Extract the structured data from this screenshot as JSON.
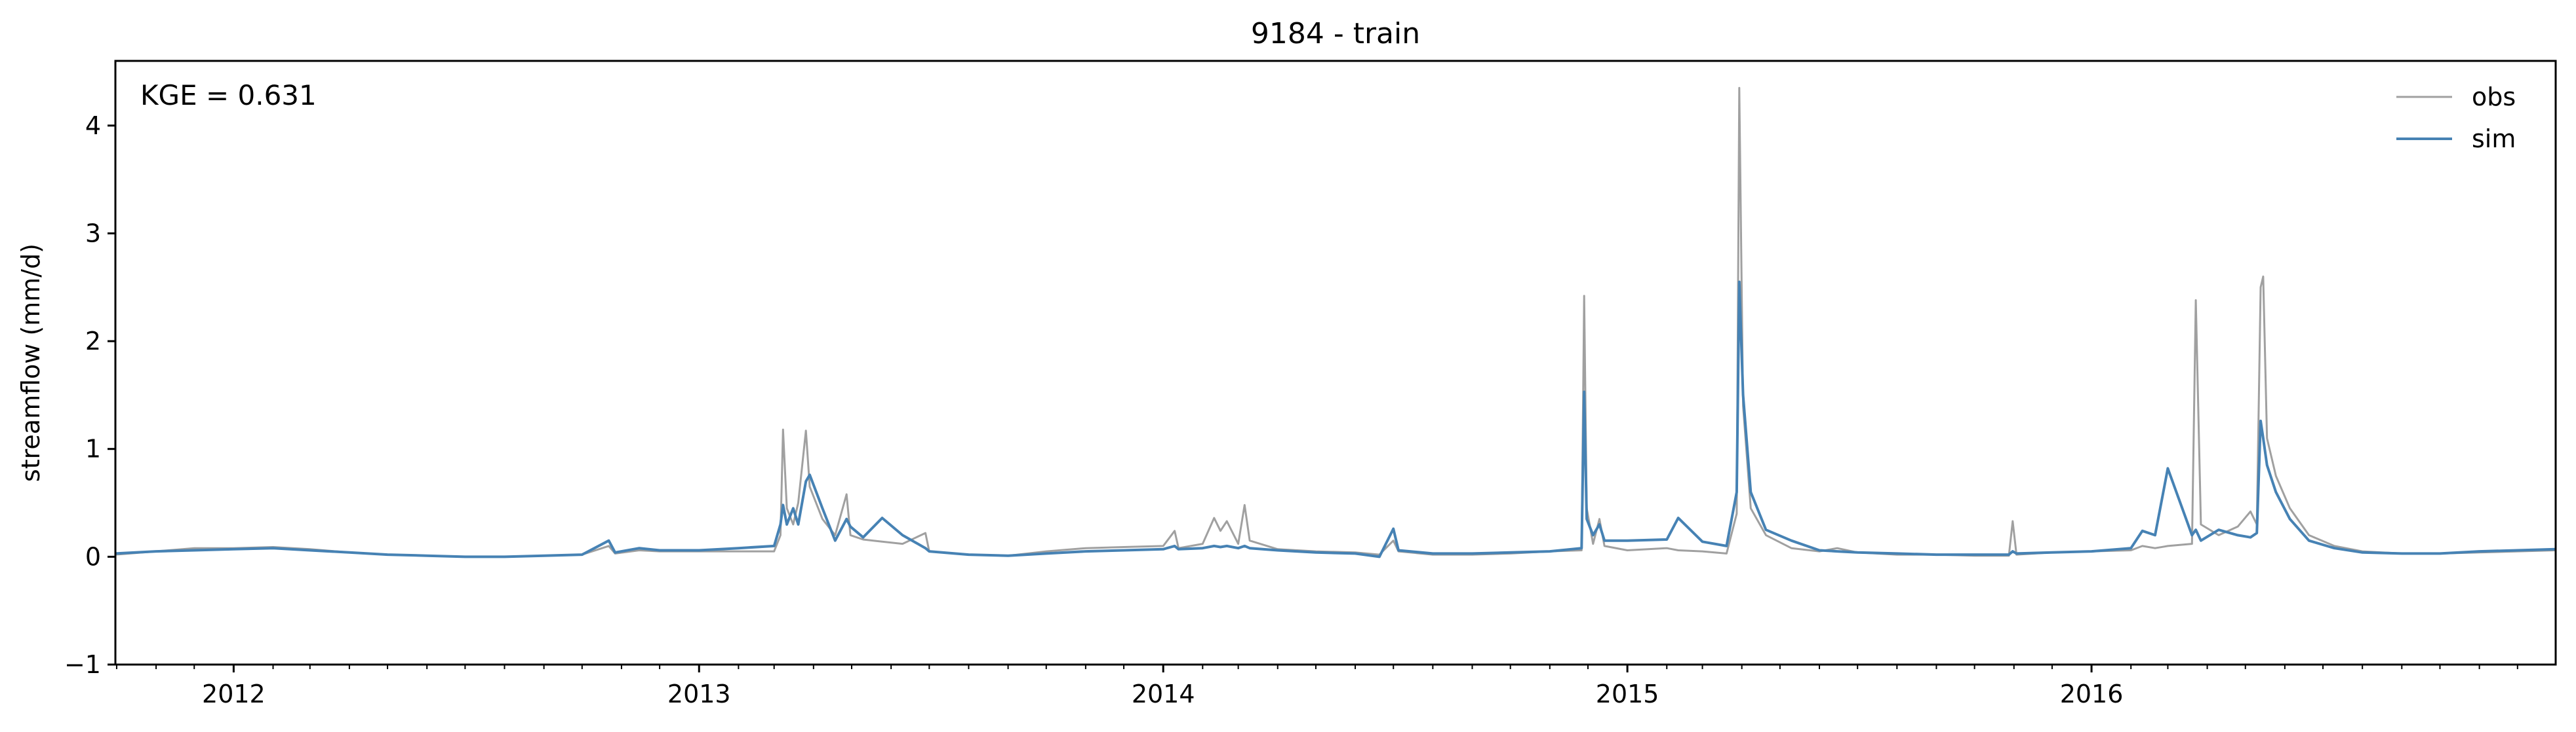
{
  "chart_data": {
    "type": "line",
    "title": "9184 - train",
    "xlabel": "",
    "ylabel": "streamflow (mm/d)",
    "annotation": "KGE = 0.631",
    "xlim": [
      "2011-09-30",
      "2016-12-31"
    ],
    "ylim": [
      -1,
      4.6
    ],
    "yticks": [
      -1,
      0,
      1,
      2,
      3,
      4
    ],
    "xticks": [
      {
        "date": "2012-01-01",
        "label": "2012"
      },
      {
        "date": "2013-01-01",
        "label": "2013"
      },
      {
        "date": "2014-01-01",
        "label": "2014"
      },
      {
        "date": "2015-01-01",
        "label": "2015"
      },
      {
        "date": "2016-01-01",
        "label": "2016"
      }
    ],
    "legend": {
      "position": "top-right"
    },
    "grid": false,
    "series": [
      {
        "name": "obs",
        "color": "#a0a0a0",
        "points": [
          [
            "2011-09-30",
            0.02
          ],
          [
            "2011-11-01",
            0.05
          ],
          [
            "2011-12-01",
            0.08
          ],
          [
            "2012-01-01",
            0.08
          ],
          [
            "2012-02-01",
            0.09
          ],
          [
            "2012-03-01",
            0.07
          ],
          [
            "2012-04-01",
            0.04
          ],
          [
            "2012-05-01",
            0.02
          ],
          [
            "2012-06-01",
            0.01
          ],
          [
            "2012-07-01",
            0.0
          ],
          [
            "2012-08-01",
            0.0
          ],
          [
            "2012-09-01",
            0.01
          ],
          [
            "2012-10-01",
            0.02
          ],
          [
            "2012-10-22",
            0.1
          ],
          [
            "2012-10-27",
            0.03
          ],
          [
            "2012-11-15",
            0.06
          ],
          [
            "2012-12-01",
            0.05
          ],
          [
            "2013-01-01",
            0.05
          ],
          [
            "2013-02-01",
            0.05
          ],
          [
            "2013-03-01",
            0.05
          ],
          [
            "2013-03-06",
            0.2
          ],
          [
            "2013-03-08",
            1.18
          ],
          [
            "2013-03-11",
            0.45
          ],
          [
            "2013-03-16",
            0.3
          ],
          [
            "2013-03-20",
            0.5
          ],
          [
            "2013-03-26",
            1.17
          ],
          [
            "2013-03-29",
            0.65
          ],
          [
            "2013-04-08",
            0.35
          ],
          [
            "2013-04-18",
            0.2
          ],
          [
            "2013-04-27",
            0.58
          ],
          [
            "2013-04-30",
            0.2
          ],
          [
            "2013-05-10",
            0.16
          ],
          [
            "2013-05-25",
            0.14
          ],
          [
            "2013-06-10",
            0.12
          ],
          [
            "2013-06-28",
            0.22
          ],
          [
            "2013-07-01",
            0.05
          ],
          [
            "2013-08-01",
            0.02
          ],
          [
            "2013-09-01",
            0.01
          ],
          [
            "2013-10-01",
            0.05
          ],
          [
            "2013-11-01",
            0.08
          ],
          [
            "2013-12-01",
            0.09
          ],
          [
            "2014-01-01",
            0.1
          ],
          [
            "2014-01-10",
            0.24
          ],
          [
            "2014-01-13",
            0.08
          ],
          [
            "2014-02-01",
            0.12
          ],
          [
            "2014-02-10",
            0.36
          ],
          [
            "2014-02-15",
            0.24
          ],
          [
            "2014-02-20",
            0.33
          ],
          [
            "2014-03-01",
            0.12
          ],
          [
            "2014-03-06",
            0.48
          ],
          [
            "2014-03-10",
            0.15
          ],
          [
            "2014-04-01",
            0.07
          ],
          [
            "2014-05-01",
            0.05
          ],
          [
            "2014-06-01",
            0.04
          ],
          [
            "2014-06-20",
            0.02
          ],
          [
            "2014-07-01",
            0.15
          ],
          [
            "2014-07-05",
            0.05
          ],
          [
            "2014-08-01",
            0.02
          ],
          [
            "2014-09-01",
            0.02
          ],
          [
            "2014-10-01",
            0.03
          ],
          [
            "2014-11-01",
            0.05
          ],
          [
            "2014-11-26",
            0.06
          ],
          [
            "2014-11-28",
            2.42
          ],
          [
            "2014-11-30",
            0.45
          ],
          [
            "2014-12-05",
            0.12
          ],
          [
            "2014-12-10",
            0.35
          ],
          [
            "2014-12-14",
            0.1
          ],
          [
            "2015-01-01",
            0.06
          ],
          [
            "2015-02-01",
            0.08
          ],
          [
            "2015-02-10",
            0.06
          ],
          [
            "2015-03-01",
            0.05
          ],
          [
            "2015-03-20",
            0.03
          ],
          [
            "2015-03-28",
            0.4
          ],
          [
            "2015-03-30",
            4.35
          ],
          [
            "2015-04-02",
            1.4
          ],
          [
            "2015-04-08",
            0.45
          ],
          [
            "2015-04-20",
            0.2
          ],
          [
            "2015-05-10",
            0.08
          ],
          [
            "2015-06-01",
            0.05
          ],
          [
            "2015-06-15",
            0.08
          ],
          [
            "2015-07-01",
            0.04
          ],
          [
            "2015-08-01",
            0.02
          ],
          [
            "2015-09-01",
            0.02
          ],
          [
            "2015-10-01",
            0.01
          ],
          [
            "2015-10-28",
            0.01
          ],
          [
            "2015-10-31",
            0.33
          ],
          [
            "2015-11-03",
            0.02
          ],
          [
            "2015-12-01",
            0.04
          ],
          [
            "2016-01-01",
            0.05
          ],
          [
            "2016-02-01",
            0.06
          ],
          [
            "2016-02-10",
            0.1
          ],
          [
            "2016-02-20",
            0.08
          ],
          [
            "2016-03-01",
            0.1
          ],
          [
            "2016-03-20",
            0.12
          ],
          [
            "2016-03-23",
            2.38
          ],
          [
            "2016-03-27",
            0.3
          ],
          [
            "2016-04-10",
            0.2
          ],
          [
            "2016-04-25",
            0.28
          ],
          [
            "2016-05-05",
            0.42
          ],
          [
            "2016-05-10",
            0.3
          ],
          [
            "2016-05-13",
            2.5
          ],
          [
            "2016-05-15",
            2.6
          ],
          [
            "2016-05-18",
            1.1
          ],
          [
            "2016-05-25",
            0.75
          ],
          [
            "2016-06-05",
            0.45
          ],
          [
            "2016-06-20",
            0.2
          ],
          [
            "2016-07-10",
            0.1
          ],
          [
            "2016-08-01",
            0.05
          ],
          [
            "2016-09-01",
            0.03
          ],
          [
            "2016-10-01",
            0.03
          ],
          [
            "2016-11-01",
            0.04
          ],
          [
            "2016-12-01",
            0.05
          ],
          [
            "2016-12-31",
            0.06
          ]
        ]
      },
      {
        "name": "sim",
        "color": "#4682b4",
        "points": [
          [
            "2011-09-30",
            0.03
          ],
          [
            "2011-11-01",
            0.05
          ],
          [
            "2011-12-01",
            0.06
          ],
          [
            "2012-01-01",
            0.07
          ],
          [
            "2012-02-01",
            0.08
          ],
          [
            "2012-03-01",
            0.06
          ],
          [
            "2012-04-01",
            0.04
          ],
          [
            "2012-05-01",
            0.02
          ],
          [
            "2012-06-01",
            0.01
          ],
          [
            "2012-07-01",
            0.0
          ],
          [
            "2012-08-01",
            0.0
          ],
          [
            "2012-09-01",
            0.01
          ],
          [
            "2012-10-01",
            0.02
          ],
          [
            "2012-10-22",
            0.15
          ],
          [
            "2012-10-27",
            0.04
          ],
          [
            "2012-11-15",
            0.08
          ],
          [
            "2012-12-01",
            0.06
          ],
          [
            "2013-01-01",
            0.06
          ],
          [
            "2013-02-01",
            0.08
          ],
          [
            "2013-03-01",
            0.1
          ],
          [
            "2013-03-06",
            0.3
          ],
          [
            "2013-03-08",
            0.48
          ],
          [
            "2013-03-11",
            0.3
          ],
          [
            "2013-03-16",
            0.45
          ],
          [
            "2013-03-20",
            0.3
          ],
          [
            "2013-03-26",
            0.7
          ],
          [
            "2013-03-29",
            0.76
          ],
          [
            "2013-04-08",
            0.45
          ],
          [
            "2013-04-18",
            0.15
          ],
          [
            "2013-04-27",
            0.35
          ],
          [
            "2013-04-30",
            0.28
          ],
          [
            "2013-05-10",
            0.18
          ],
          [
            "2013-05-25",
            0.36
          ],
          [
            "2013-06-10",
            0.2
          ],
          [
            "2013-06-28",
            0.08
          ],
          [
            "2013-07-01",
            0.05
          ],
          [
            "2013-08-01",
            0.02
          ],
          [
            "2013-09-01",
            0.01
          ],
          [
            "2013-10-01",
            0.03
          ],
          [
            "2013-11-01",
            0.05
          ],
          [
            "2013-12-01",
            0.06
          ],
          [
            "2014-01-01",
            0.07
          ],
          [
            "2014-01-10",
            0.1
          ],
          [
            "2014-01-13",
            0.07
          ],
          [
            "2014-02-01",
            0.08
          ],
          [
            "2014-02-10",
            0.1
          ],
          [
            "2014-02-15",
            0.09
          ],
          [
            "2014-02-20",
            0.1
          ],
          [
            "2014-03-01",
            0.08
          ],
          [
            "2014-03-06",
            0.1
          ],
          [
            "2014-03-10",
            0.08
          ],
          [
            "2014-04-01",
            0.06
          ],
          [
            "2014-05-01",
            0.04
          ],
          [
            "2014-06-01",
            0.03
          ],
          [
            "2014-06-20",
            0.0
          ],
          [
            "2014-07-01",
            0.26
          ],
          [
            "2014-07-05",
            0.06
          ],
          [
            "2014-08-01",
            0.03
          ],
          [
            "2014-09-01",
            0.03
          ],
          [
            "2014-10-01",
            0.04
          ],
          [
            "2014-11-01",
            0.05
          ],
          [
            "2014-11-26",
            0.08
          ],
          [
            "2014-11-28",
            1.53
          ],
          [
            "2014-11-30",
            0.35
          ],
          [
            "2014-12-05",
            0.2
          ],
          [
            "2014-12-10",
            0.3
          ],
          [
            "2014-12-14",
            0.15
          ],
          [
            "2015-01-01",
            0.15
          ],
          [
            "2015-02-01",
            0.16
          ],
          [
            "2015-02-10",
            0.36
          ],
          [
            "2015-03-01",
            0.14
          ],
          [
            "2015-03-20",
            0.1
          ],
          [
            "2015-03-28",
            0.6
          ],
          [
            "2015-03-30",
            2.55
          ],
          [
            "2015-04-02",
            1.5
          ],
          [
            "2015-04-08",
            0.6
          ],
          [
            "2015-04-20",
            0.25
          ],
          [
            "2015-05-10",
            0.15
          ],
          [
            "2015-06-01",
            0.06
          ],
          [
            "2015-06-15",
            0.05
          ],
          [
            "2015-07-01",
            0.04
          ],
          [
            "2015-08-01",
            0.03
          ],
          [
            "2015-09-01",
            0.02
          ],
          [
            "2015-10-01",
            0.02
          ],
          [
            "2015-10-28",
            0.02
          ],
          [
            "2015-10-31",
            0.05
          ],
          [
            "2015-11-03",
            0.03
          ],
          [
            "2015-12-01",
            0.04
          ],
          [
            "2016-01-01",
            0.05
          ],
          [
            "2016-02-01",
            0.08
          ],
          [
            "2016-02-10",
            0.24
          ],
          [
            "2016-02-20",
            0.2
          ],
          [
            "2016-03-01",
            0.82
          ],
          [
            "2016-03-20",
            0.2
          ],
          [
            "2016-03-23",
            0.25
          ],
          [
            "2016-03-27",
            0.15
          ],
          [
            "2016-04-10",
            0.25
          ],
          [
            "2016-04-25",
            0.2
          ],
          [
            "2016-05-05",
            0.18
          ],
          [
            "2016-05-10",
            0.22
          ],
          [
            "2016-05-13",
            1.26
          ],
          [
            "2016-05-15",
            1.1
          ],
          [
            "2016-05-18",
            0.85
          ],
          [
            "2016-05-25",
            0.6
          ],
          [
            "2016-06-05",
            0.35
          ],
          [
            "2016-06-20",
            0.15
          ],
          [
            "2016-07-10",
            0.08
          ],
          [
            "2016-08-01",
            0.04
          ],
          [
            "2016-09-01",
            0.03
          ],
          [
            "2016-10-01",
            0.03
          ],
          [
            "2016-11-01",
            0.05
          ],
          [
            "2016-12-01",
            0.06
          ],
          [
            "2016-12-31",
            0.07
          ]
        ]
      }
    ]
  }
}
